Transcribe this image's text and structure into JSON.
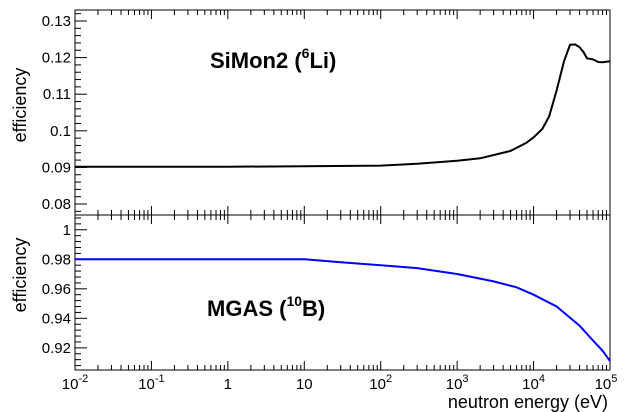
{
  "chart_data": [
    {
      "type": "line",
      "title": "SiMon2 (6Li)",
      "title_main": "SiMon2 (",
      "title_sup": "6",
      "title_tail": "Li)",
      "xlabel": "",
      "ylabel": "efficiency",
      "xscale": "log",
      "xlim": [
        0.01,
        100000
      ],
      "ylim": [
        0.077,
        0.133
      ],
      "yticks": [
        0.08,
        0.09,
        0.1,
        0.11,
        0.12,
        0.13
      ],
      "ytick_labels": [
        "0.08",
        "0.09",
        "0.1",
        "0.11",
        "0.12",
        "0.13"
      ],
      "grid": false,
      "color": "#000000",
      "series": [
        {
          "x": [
            0.01,
            0.1,
            1,
            10,
            100,
            300,
            1000,
            2000,
            5000,
            8000,
            10000,
            13000,
            16000,
            20000,
            25000,
            30000,
            35000,
            40000,
            45000,
            50000,
            60000,
            70000,
            80000,
            100000
          ],
          "y": [
            0.0902,
            0.0902,
            0.0902,
            0.0903,
            0.0905,
            0.091,
            0.0918,
            0.0925,
            0.0945,
            0.0967,
            0.0982,
            0.1005,
            0.104,
            0.111,
            0.119,
            0.1235,
            0.1236,
            0.1228,
            0.1215,
            0.1198,
            0.1195,
            0.1188,
            0.1187,
            0.119
          ]
        }
      ]
    },
    {
      "type": "line",
      "title": "MGAS (10B)",
      "title_main": "MGAS (",
      "title_sup": "10",
      "title_tail": "B)",
      "xlabel": "neutron energy (eV)",
      "ylabel": "efficiency",
      "xscale": "log",
      "xlim": [
        0.01,
        100000
      ],
      "ylim": [
        0.905,
        1.01
      ],
      "yticks": [
        0.92,
        0.94,
        0.96,
        0.98,
        1.0
      ],
      "ytick_labels": [
        "0.92",
        "0.94",
        "0.96",
        "0.98",
        "1"
      ],
      "xticks": [
        0.01,
        0.1,
        1,
        10,
        100,
        1000,
        10000,
        100000
      ],
      "xtick_labels": [
        {
          "base": "10",
          "exp": "-2"
        },
        {
          "base": "10",
          "exp": "-1"
        },
        {
          "base": "1",
          "exp": ""
        },
        {
          "base": "10",
          "exp": ""
        },
        {
          "base": "10",
          "exp": "2"
        },
        {
          "base": "10",
          "exp": "3"
        },
        {
          "base": "10",
          "exp": "4"
        },
        {
          "base": "10",
          "exp": "5"
        }
      ],
      "grid": false,
      "color": "#0000ff",
      "series": [
        {
          "x": [
            0.01,
            0.1,
            1,
            10,
            30,
            100,
            300,
            1000,
            3000,
            6000,
            10000,
            20000,
            40000,
            60000,
            80000,
            100000
          ],
          "y": [
            0.98,
            0.98,
            0.98,
            0.98,
            0.978,
            0.976,
            0.974,
            0.97,
            0.965,
            0.961,
            0.956,
            0.948,
            0.935,
            0.925,
            0.918,
            0.911
          ]
        }
      ]
    }
  ]
}
